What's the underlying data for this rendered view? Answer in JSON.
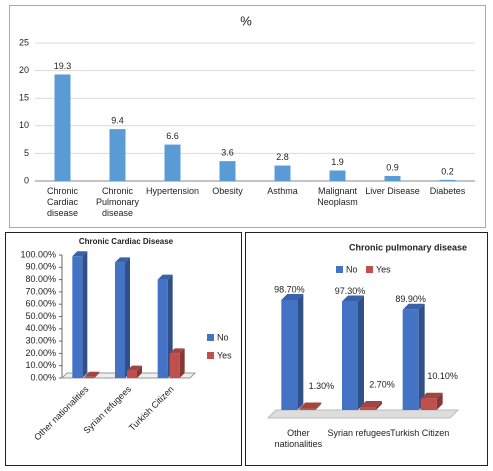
{
  "chart_data": [
    {
      "type": "bar",
      "title": "%",
      "categories": [
        "Chronic Cardiac disease",
        "Chronic Pulmonary disease",
        "Hypertension",
        "Obesity",
        "Asthma",
        "Malignant Neoplasm",
        "Liver Disease",
        "Diabetes"
      ],
      "values": [
        19.3,
        9.4,
        6.6,
        3.6,
        2.8,
        1.9,
        0.9,
        0.2
      ],
      "color": "#5b9bd5",
      "ylim": [
        0,
        25
      ],
      "yticks": [
        0,
        5,
        10,
        15,
        20,
        25
      ],
      "grid": true
    },
    {
      "type": "bar3d",
      "title": "Chronic Cardiac Disease",
      "categories": [
        "Other nationalities",
        "Syrian refugees",
        "Turkish Citizen"
      ],
      "series": [
        {
          "name": "No",
          "color": "#4472c4",
          "values": [
            99,
            94,
            80
          ]
        },
        {
          "name": "Yes",
          "color": "#c0504d",
          "values": [
            1,
            6,
            20
          ]
        }
      ],
      "ylim": [
        0,
        100
      ],
      "yticks": [
        {
          "value": 0,
          "label": "0.00%"
        },
        {
          "value": 10,
          "label": "10.00%"
        },
        {
          "value": 20,
          "label": "20.00%"
        },
        {
          "value": 30,
          "label": "30.00%"
        },
        {
          "value": 40,
          "label": "40.00%"
        },
        {
          "value": 50,
          "label": "50.00%"
        },
        {
          "value": 60,
          "label": "60.00%"
        },
        {
          "value": 70,
          "label": "70.00%"
        },
        {
          "value": 80,
          "label": "80.00%"
        },
        {
          "value": 90,
          "label": "90.00%"
        },
        {
          "value": 100,
          "label": "100.00%"
        }
      ],
      "legend": "right"
    },
    {
      "type": "bar3d",
      "title": "Chronic pulmonary disease",
      "categories": [
        "Other nationalities",
        "Syrian refugees",
        "Turkish Citizen"
      ],
      "series": [
        {
          "name": "No",
          "color": "#4472c4",
          "values": [
            98.7,
            97.3,
            89.9
          ],
          "value_labels": [
            "98.70%",
            "97.30%",
            "89.90%"
          ]
        },
        {
          "name": "Yes",
          "color": "#c0504d",
          "values": [
            1.3,
            2.7,
            10.1
          ],
          "value_labels": [
            "1.30%",
            "2.70%",
            "10.10%"
          ]
        }
      ],
      "legend": "top"
    }
  ]
}
